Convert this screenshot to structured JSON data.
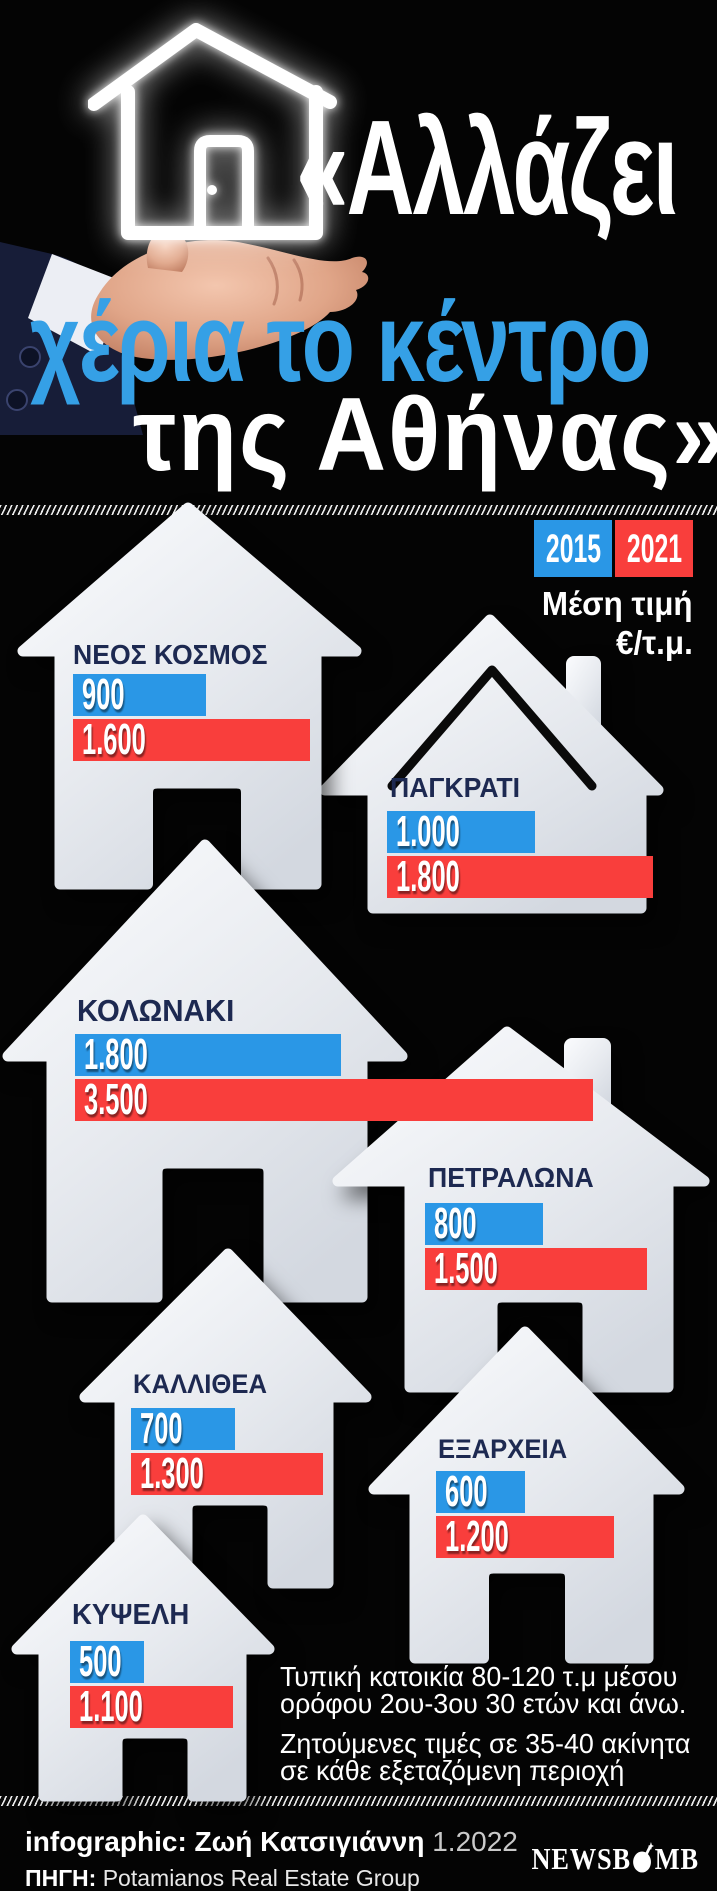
{
  "header": {
    "title_line1": "«Αλλάζει",
    "title_line2": "χέρια το κέντρο",
    "title_line3": "της Αθήνας»"
  },
  "legend": {
    "year_2015": "2015",
    "year_2021": "2021",
    "metric_line1": "Μέση τιμή",
    "metric_line2": "€/τ.μ."
  },
  "chart_data": {
    "type": "bar",
    "orientation": "horizontal",
    "title": "Μέση τιμή €/τ.μ.",
    "legend_position": "top-right",
    "categories": [
      "ΝΕΟΣ ΚΟΣΜΟΣ",
      "ΠΑΓΚΡΑΤΙ",
      "ΚΟΛΩΝΑΚΙ",
      "ΠΕΤΡΑΛΩΝΑ",
      "ΚΑΛΛΙΘΕΑ",
      "ΕΞΑΡΧΕΙΑ",
      "ΚΥΨΕΛΗ"
    ],
    "series": [
      {
        "name": "2015",
        "color": "#2a97e6",
        "values": [
          900,
          1000,
          1800,
          800,
          700,
          600,
          500
        ],
        "labels": [
          "900",
          "1.000",
          "1.800",
          "800",
          "700",
          "600",
          "500"
        ]
      },
      {
        "name": "2021",
        "color": "#f93e3c",
        "values": [
          1600,
          1800,
          3500,
          1500,
          1300,
          1200,
          1100
        ],
        "labels": [
          "1.600",
          "1.800",
          "3.500",
          "1.500",
          "1.300",
          "1.200",
          "1.100"
        ]
      }
    ]
  },
  "footnotes": {
    "note1": "Τυπική κατοικία 80-120 τ.μ μέσου ορόφου 2ου-3ου 30 ετών και άνω.",
    "note2": "Ζητούμενες τιμές σε 35-40 ακίνητα σε κάθε εξεταζόμενη περιοχή"
  },
  "credits": {
    "infographic_label": "infographic:",
    "infographic_name": "Ζωή Κατσιγιάννη",
    "date": "1.2022",
    "source_label": "ΠΗΓΗ:",
    "source_name": "Potamianos Real Estate Group"
  },
  "brand": {
    "left": "NEWSB",
    "right": "MB"
  },
  "colors": {
    "background": "#040404",
    "bar_2015_blue": "#2a97e6",
    "bar_2021_red": "#f93e3c",
    "region_label_navy": "#1d2951",
    "title_blue": "#35a0e6",
    "house_light": "#eef1f5"
  }
}
